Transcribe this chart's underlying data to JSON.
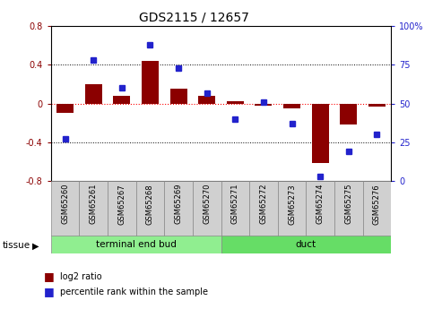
{
  "title": "GDS2115 / 12657",
  "samples": [
    "GSM65260",
    "GSM65261",
    "GSM65267",
    "GSM65268",
    "GSM65269",
    "GSM65270",
    "GSM65271",
    "GSM65272",
    "GSM65273",
    "GSM65274",
    "GSM65275",
    "GSM65276"
  ],
  "log2_ratio": [
    -0.1,
    0.2,
    0.08,
    0.44,
    0.15,
    0.08,
    0.02,
    -0.02,
    -0.05,
    -0.62,
    -0.22,
    -0.03
  ],
  "percentile": [
    27,
    78,
    60,
    88,
    73,
    57,
    40,
    51,
    37,
    3,
    19,
    30
  ],
  "group1_label": "terminal end bud",
  "group2_label": "duct",
  "group1_count": 6,
  "group2_count": 6,
  "bar_color": "#8B0000",
  "dot_color": "#2222CC",
  "group1_bg": "#90EE90",
  "group2_bg": "#66DD66",
  "sample_bg": "#D0D0D0",
  "ylim_left": [
    -0.8,
    0.8
  ],
  "ylim_right": [
    0,
    100
  ],
  "yticks_left": [
    -0.8,
    -0.4,
    0.0,
    0.4,
    0.8
  ],
  "yticks_right": [
    0,
    25,
    50,
    75,
    100
  ],
  "legend_log2": "log2 ratio",
  "legend_pct": "percentile rank within the sample",
  "tissue_label": "tissue"
}
